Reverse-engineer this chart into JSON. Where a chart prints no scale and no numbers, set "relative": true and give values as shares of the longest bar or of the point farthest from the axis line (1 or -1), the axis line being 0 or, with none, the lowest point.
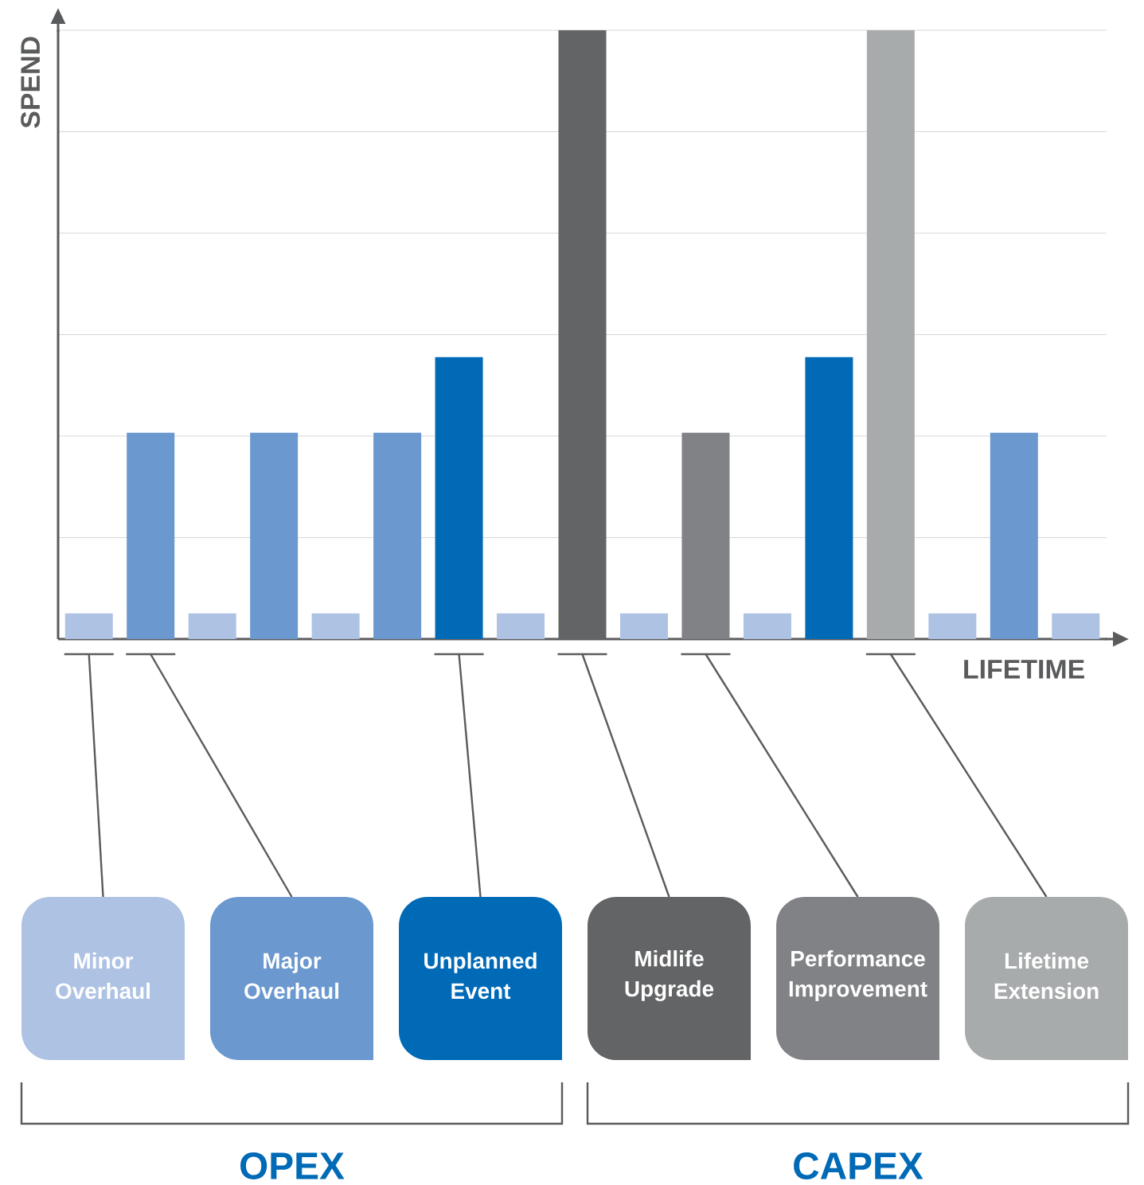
{
  "chart_data": [
    {
      "type": "bar",
      "relative": true,
      "xlabel": "LIFETIME",
      "ylabel": "SPEND",
      "grid": "y",
      "categories": [
        null,
        null,
        null,
        null,
        null,
        null,
        null,
        null,
        null,
        null,
        null,
        null,
        null,
        null,
        null,
        null,
        null
      ],
      "values": [
        0.042,
        0.339,
        0.042,
        0.339,
        0.042,
        0.339,
        0.463,
        0.042,
        1,
        0.042,
        0.339,
        0.042,
        0.463,
        1,
        0.042,
        0.339,
        0.042
      ],
      "colors": [
        "#aec2e4",
        "#6a98cf",
        "#aec2e4",
        "#6a98cf",
        "#aec2e4",
        "#6a98cf",
        "#006ab7",
        "#aec2e4",
        "#636466",
        "#aec2e4",
        "#818285",
        "#aec2e4",
        "#006ab7",
        "#a8abac",
        "#aec2e4",
        "#6a98cf",
        "#aec2e4"
      ]
    },
    {
      "type": "other",
      "categories": [
        "Minor Overhaul",
        "Major Overhaul",
        "Unplanned Event",
        "Midlife Upgrade",
        "Performance Improvement",
        "Lifetime Extension"
      ],
      "colors": [
        "#aec2e4",
        "#6a98cf",
        "#006ab7",
        "#636466",
        "#818285",
        "#a8abac"
      ],
      "annotations": [
        "OPEX",
        "CAPEX"
      ]
    }
  ]
}
